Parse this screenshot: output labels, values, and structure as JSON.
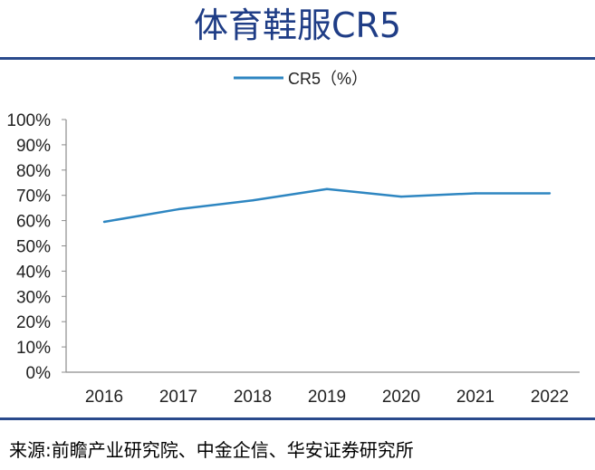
{
  "title": "体育鞋服CR5",
  "source": "来源:前瞻产业研究院、中金企信、华安证券研究所",
  "colors": {
    "title": "#1f3d86",
    "rule": "#2a4a8c",
    "series": "#2e86c1",
    "axis": "#8c8c8c"
  },
  "chart_data": {
    "type": "line",
    "title": "",
    "xlabel": "",
    "ylabel": "",
    "x": [
      "2016",
      "2017",
      "2018",
      "2019",
      "2020",
      "2021",
      "2022"
    ],
    "series": [
      {
        "name": "CR5（%）",
        "values": [
          59.5,
          64.5,
          68,
          72.5,
          69.5,
          70.8,
          70.8
        ]
      }
    ],
    "ylim": [
      0,
      100
    ],
    "yticks": [
      0,
      10,
      20,
      30,
      40,
      50,
      60,
      70,
      80,
      90,
      100
    ],
    "ytick_labels": [
      "0%",
      "10%",
      "20%",
      "30%",
      "40%",
      "50%",
      "60%",
      "70%",
      "80%",
      "90%",
      "100%"
    ],
    "grid": false,
    "legend": "top-center"
  }
}
